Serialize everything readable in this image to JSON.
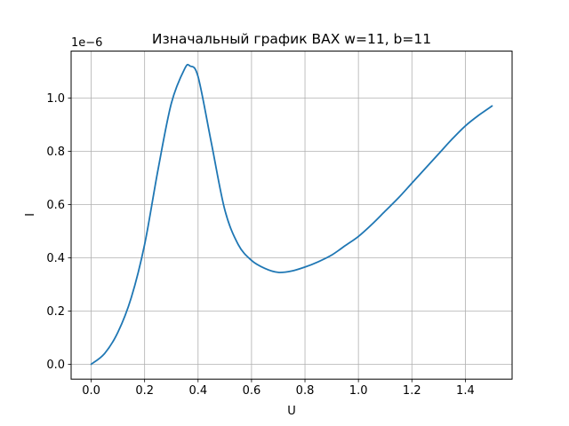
{
  "chart_data": {
    "type": "line",
    "title": "Изначальный график ВАХ w=11, b=11",
    "xlabel": "U",
    "ylabel": "I",
    "y_offset_label": "1e−6",
    "xlim": [
      -0.075,
      1.575
    ],
    "ylim": [
      -0.056,
      1.176
    ],
    "y_scale": 1e-06,
    "grid": true,
    "line_color": "#1f77b4",
    "x_ticks": [
      0.0,
      0.2,
      0.4,
      0.6,
      0.8,
      1.0,
      1.2,
      1.4
    ],
    "x_tick_labels": [
      "0.0",
      "0.2",
      "0.4",
      "0.6",
      "0.8",
      "1.0",
      "1.2",
      "1.4"
    ],
    "y_ticks": [
      0.0,
      0.2,
      0.4,
      0.6,
      0.8,
      1.0
    ],
    "y_tick_labels": [
      "0.0",
      "0.2",
      "0.4",
      "0.6",
      "0.8",
      "1.0"
    ],
    "series": [
      {
        "x": [
          0.0,
          0.05,
          0.1,
          0.15,
          0.2,
          0.25,
          0.3,
          0.35,
          0.37,
          0.4,
          0.45,
          0.5,
          0.55,
          0.6,
          0.65,
          0.7,
          0.75,
          0.8,
          0.85,
          0.9,
          0.95,
          1.0,
          1.05,
          1.1,
          1.15,
          1.2,
          1.25,
          1.3,
          1.35,
          1.4,
          1.45,
          1.5
        ],
        "y": [
          0.0,
          0.04,
          0.12,
          0.25,
          0.45,
          0.73,
          0.98,
          1.11,
          1.12,
          1.08,
          0.83,
          0.58,
          0.45,
          0.39,
          0.36,
          0.345,
          0.35,
          0.365,
          0.385,
          0.41,
          0.445,
          0.48,
          0.525,
          0.575,
          0.625,
          0.68,
          0.735,
          0.79,
          0.845,
          0.895,
          0.935,
          0.97
        ]
      }
    ]
  }
}
